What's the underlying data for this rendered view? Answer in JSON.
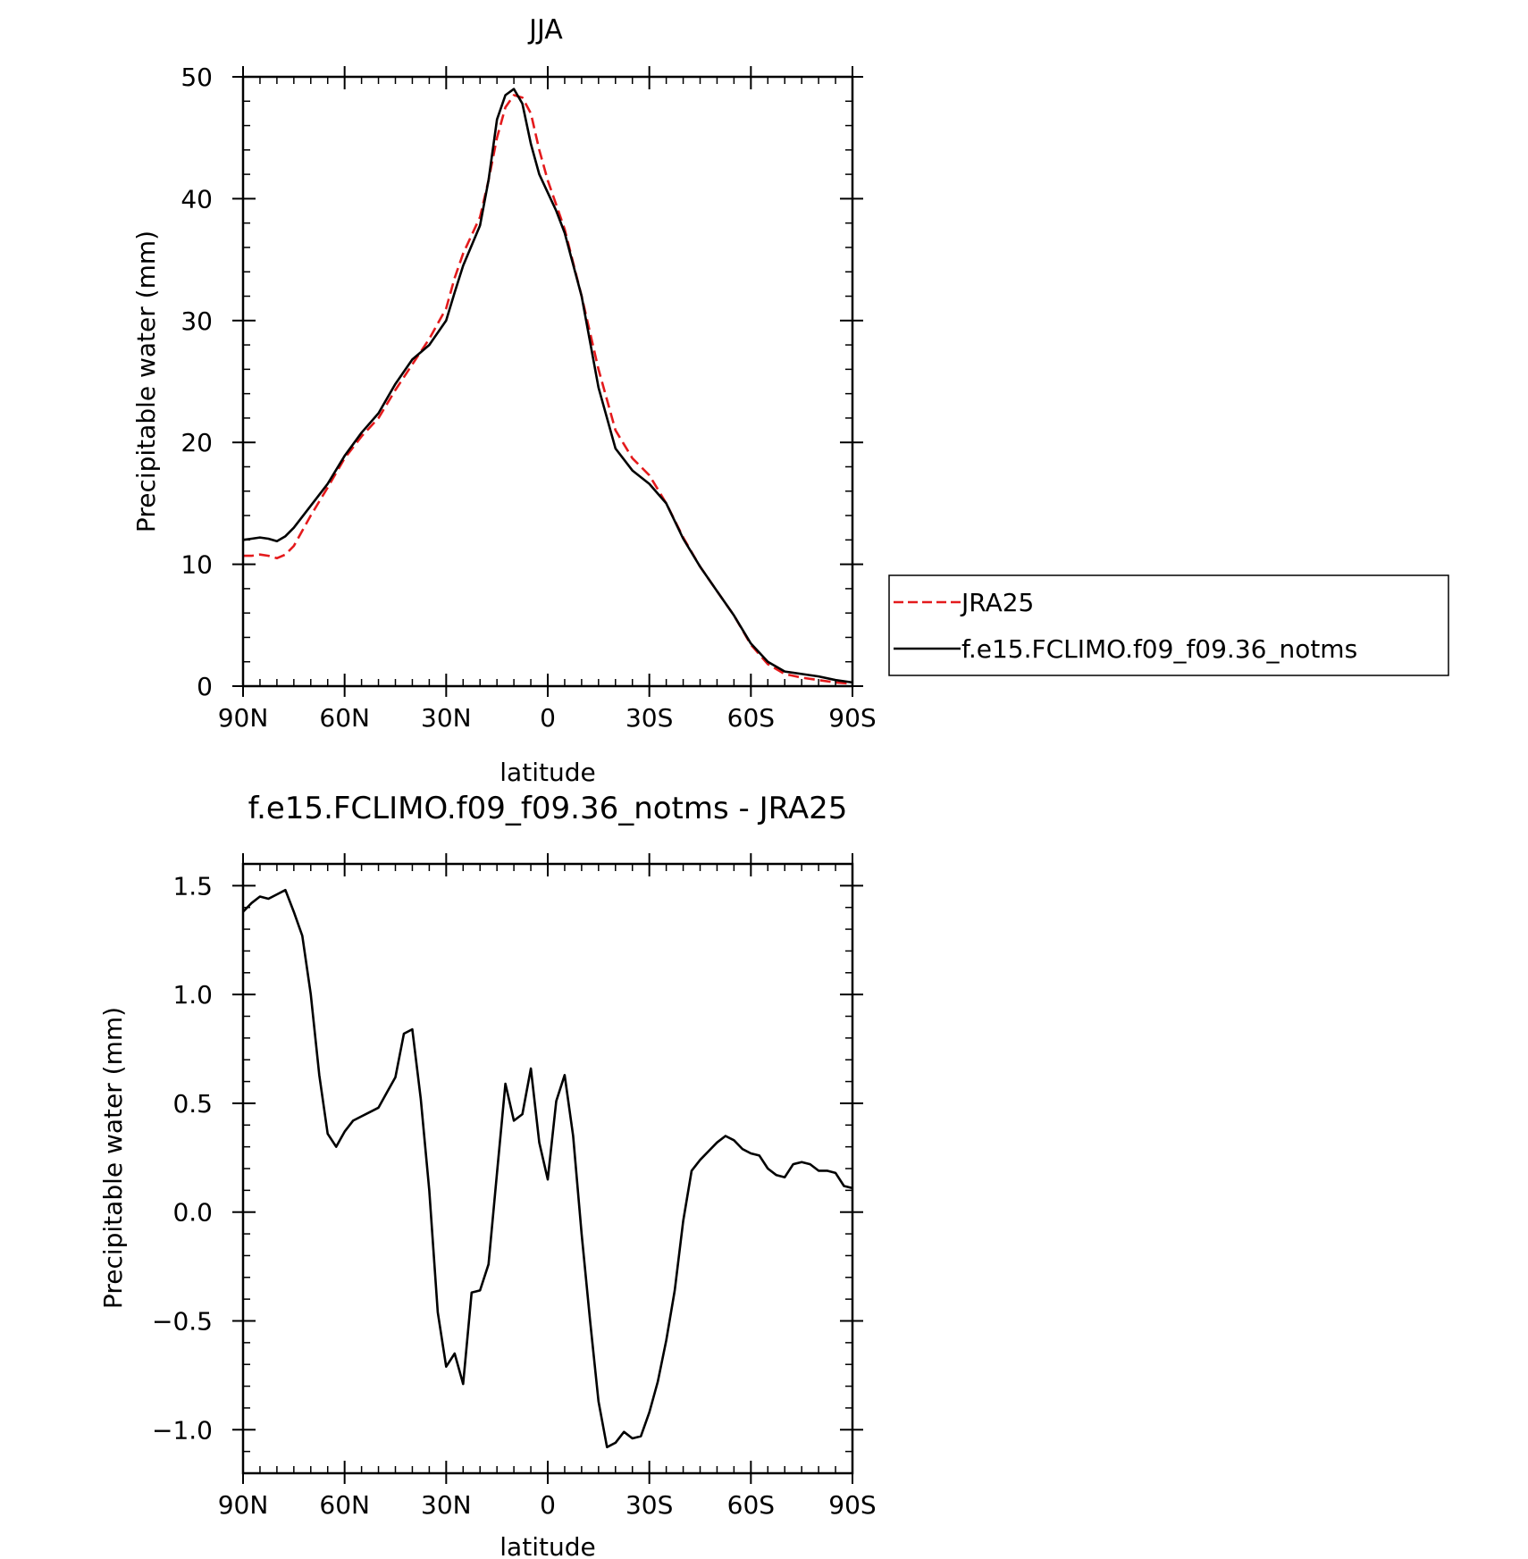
{
  "chart_data": [
    {
      "type": "line",
      "title": "JJA",
      "xlabel": "latitude",
      "ylabel": "Precipitable water (mm)",
      "xlim": [
        90,
        -90
      ],
      "ylim": [
        0,
        50
      ],
      "xticks": [
        {
          "value": 90,
          "label": "90N"
        },
        {
          "value": 60,
          "label": "60N"
        },
        {
          "value": 30,
          "label": "30N"
        },
        {
          "value": 0,
          "label": "0"
        },
        {
          "value": -30,
          "label": "30S"
        },
        {
          "value": -60,
          "label": "60S"
        },
        {
          "value": -90,
          "label": "90S"
        }
      ],
      "yticks": [
        {
          "value": 0,
          "label": "0"
        },
        {
          "value": 10,
          "label": "10"
        },
        {
          "value": 20,
          "label": "20"
        },
        {
          "value": 30,
          "label": "30"
        },
        {
          "value": 40,
          "label": "40"
        },
        {
          "value": 50,
          "label": "50"
        }
      ],
      "legend_position": "right",
      "series": [
        {
          "name": "JRA25",
          "color": "#e41a1c",
          "dash": "dashed",
          "x": [
            90,
            87.5,
            85,
            82.5,
            80,
            77.5,
            75,
            70,
            65,
            60,
            55,
            50,
            45,
            40,
            35,
            30,
            27.5,
            25,
            20,
            17.5,
            15,
            12.5,
            10,
            7.5,
            5,
            2.5,
            0,
            -2.5,
            -5,
            -10,
            -15,
            -20,
            -25,
            -30,
            -35,
            -40,
            -45,
            -50,
            -55,
            -60,
            -65,
            -70,
            -75,
            -80,
            -85,
            -90
          ],
          "y": [
            10.7,
            10.7,
            10.8,
            10.7,
            10.5,
            10.8,
            11.5,
            14.0,
            16.3,
            18.7,
            20.5,
            22.0,
            24.3,
            26.4,
            28.5,
            31.0,
            33.5,
            35.5,
            38.5,
            41.5,
            45.0,
            47.5,
            48.5,
            48.3,
            47.0,
            44.0,
            41.5,
            39.5,
            37.5,
            32.0,
            26.0,
            21.0,
            18.7,
            17.3,
            15.0,
            12.2,
            9.8,
            7.8,
            5.8,
            3.4,
            1.8,
            1.0,
            0.7,
            0.5,
            0.3,
            0.2
          ]
        },
        {
          "name": "f.e15.FCLIMO.f09_f09.36_notms",
          "color": "#000000",
          "dash": "solid",
          "x": [
            90,
            87.5,
            85,
            82.5,
            80,
            77.5,
            75,
            70,
            65,
            60,
            55,
            50,
            45,
            40,
            35,
            30,
            27.5,
            25,
            20,
            17.5,
            15,
            12.5,
            10,
            7.5,
            5,
            2.5,
            0,
            -2.5,
            -5,
            -10,
            -15,
            -20,
            -25,
            -30,
            -35,
            -40,
            -45,
            -50,
            -55,
            -60,
            -65,
            -70,
            -75,
            -80,
            -85,
            -90
          ],
          "y": [
            12.0,
            12.1,
            12.2,
            12.1,
            11.9,
            12.3,
            13.0,
            14.8,
            16.6,
            18.9,
            20.8,
            22.4,
            24.8,
            26.8,
            28.0,
            30.0,
            32.3,
            34.5,
            37.8,
            41.5,
            46.5,
            48.5,
            49.0,
            47.8,
            44.5,
            42.0,
            40.5,
            39.0,
            37.2,
            32.0,
            24.5,
            19.5,
            17.7,
            16.6,
            15.0,
            12.1,
            9.8,
            7.8,
            5.8,
            3.5,
            2.0,
            1.2,
            1.0,
            0.8,
            0.5,
            0.3
          ]
        }
      ]
    },
    {
      "type": "line",
      "title": "f.e15.FCLIMO.f09_f09.36_notms - JRA25",
      "xlabel": "latitude",
      "ylabel": "Precipitable water (mm)",
      "xlim": [
        90,
        -90
      ],
      "ylim": [
        -1.2,
        1.6
      ],
      "xticks": [
        {
          "value": 90,
          "label": "90N"
        },
        {
          "value": 60,
          "label": "60N"
        },
        {
          "value": 30,
          "label": "30N"
        },
        {
          "value": 0,
          "label": "0"
        },
        {
          "value": -30,
          "label": "30S"
        },
        {
          "value": -60,
          "label": "60S"
        },
        {
          "value": -90,
          "label": "90S"
        }
      ],
      "yticks": [
        {
          "value": 1.5,
          "label": "1.5"
        },
        {
          "value": 1.0,
          "label": "1.0"
        },
        {
          "value": 0.5,
          "label": "0.5"
        },
        {
          "value": 0.0,
          "label": "0.0"
        },
        {
          "value": -0.5,
          "label": "−0.5"
        },
        {
          "value": -1.0,
          "label": "−1.0"
        }
      ],
      "series": [
        {
          "color": "#000000",
          "dash": "solid",
          "x": [
            90,
            87.5,
            85,
            82.5,
            80,
            77.5,
            75,
            72.5,
            70,
            67.5,
            65,
            62.5,
            60,
            57.5,
            55,
            52.5,
            50,
            47.5,
            45,
            42.5,
            40,
            37.5,
            35,
            32.5,
            30,
            27.5,
            25,
            22.5,
            20,
            17.5,
            15,
            12.5,
            10,
            7.5,
            5,
            2.5,
            0,
            -2.5,
            -5,
            -7.5,
            -10,
            -12.5,
            -15,
            -17.5,
            -20,
            -22.5,
            -25,
            -27.5,
            -30,
            -32.5,
            -35,
            -37.5,
            -40,
            -42.5,
            -45,
            -47.5,
            -50,
            -52.5,
            -55,
            -57.5,
            -60,
            -62.5,
            -65,
            -67.5,
            -70,
            -72.5,
            -75,
            -77.5,
            -80,
            -82.5,
            -85,
            -87.5,
            -90
          ],
          "y": [
            1.38,
            1.42,
            1.45,
            1.44,
            1.46,
            1.48,
            1.38,
            1.27,
            1.0,
            0.63,
            0.36,
            0.3,
            0.37,
            0.42,
            0.44,
            0.46,
            0.48,
            0.55,
            0.62,
            0.82,
            0.84,
            0.52,
            0.1,
            -0.46,
            -0.71,
            -0.65,
            -0.79,
            -0.37,
            -0.36,
            -0.24,
            0.18,
            0.59,
            0.42,
            0.45,
            0.66,
            0.32,
            0.15,
            0.51,
            0.63,
            0.35,
            -0.1,
            -0.5,
            -0.87,
            -1.08,
            -1.06,
            -1.01,
            -1.04,
            -1.03,
            -0.92,
            -0.78,
            -0.59,
            -0.36,
            -0.04,
            0.19,
            0.24,
            0.28,
            0.32,
            0.35,
            0.33,
            0.29,
            0.27,
            0.26,
            0.2,
            0.17,
            0.16,
            0.22,
            0.23,
            0.22,
            0.19,
            0.19,
            0.18,
            0.12,
            0.11
          ]
        }
      ]
    }
  ]
}
